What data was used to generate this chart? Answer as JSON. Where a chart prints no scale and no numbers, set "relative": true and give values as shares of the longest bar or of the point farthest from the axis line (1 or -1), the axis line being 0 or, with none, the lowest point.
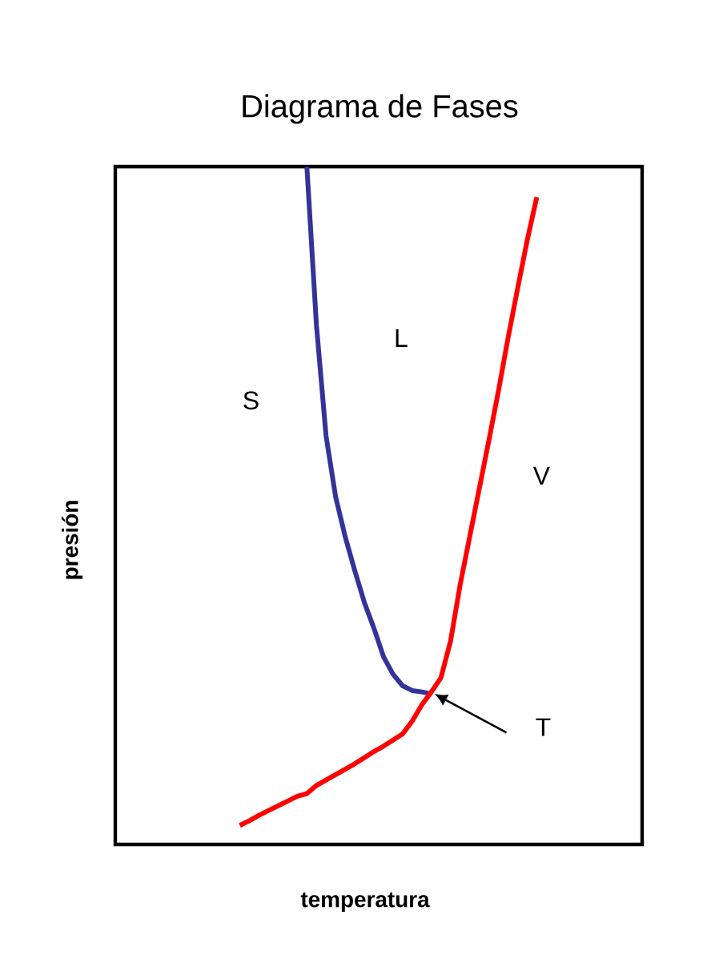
{
  "chart_data": {
    "type": "line",
    "title": "Diagrama de Fases",
    "xlabel": "temperatura",
    "ylabel": "presión",
    "relative": true,
    "categories": [
      null,
      null,
      null,
      null,
      null,
      null,
      null,
      null,
      null,
      null,
      null,
      null,
      null,
      null,
      null,
      null,
      null,
      null,
      null,
      null,
      null,
      null,
      null,
      null,
      null,
      null,
      null,
      null,
      null,
      null,
      null,
      null,
      null,
      null,
      null,
      null,
      null,
      null,
      null,
      null,
      null,
      null,
      null,
      null,
      null,
      null,
      null,
      null,
      null,
      null,
      null,
      null,
      null,
      null,
      null,
      null
    ],
    "series": [
      {
        "color": "#333399",
        "values": [
          null,
          null,
          null,
          null,
          null,
          null,
          null,
          null,
          null,
          null,
          null,
          null,
          null,
          null,
          null,
          null,
          null,
          null,
          null,
          null,
          1.0,
          0.766,
          0.603,
          0.513,
          0.454,
          0.404,
          0.357,
          0.319,
          0.277,
          0.251,
          0.234,
          0.227,
          0.225,
          0.222,
          null,
          null,
          null,
          null,
          null,
          null,
          null,
          null,
          null,
          null,
          null,
          null,
          null,
          null,
          null,
          null,
          null,
          null,
          null,
          null,
          null,
          null
        ]
      },
      {
        "color": "#ff0000",
        "values": [
          null,
          null,
          null,
          null,
          null,
          null,
          null,
          null,
          null,
          null,
          null,
          null,
          null,
          0.028,
          0.035,
          0.043,
          0.05,
          0.057,
          0.064,
          0.071,
          0.075,
          0.087,
          0.095,
          0.103,
          0.111,
          0.119,
          0.128,
          0.137,
          0.145,
          0.154,
          0.163,
          0.182,
          0.206,
          0.225,
          0.246,
          0.3,
          0.383,
          0.454,
          0.525,
          0.596,
          0.669,
          0.747,
          0.82,
          0.891,
          0.955,
          null,
          null,
          null,
          null,
          null,
          null,
          null,
          null,
          null,
          null,
          null
        ]
      }
    ],
    "annotations": [
      "S",
      "L",
      "V",
      "T"
    ]
  }
}
